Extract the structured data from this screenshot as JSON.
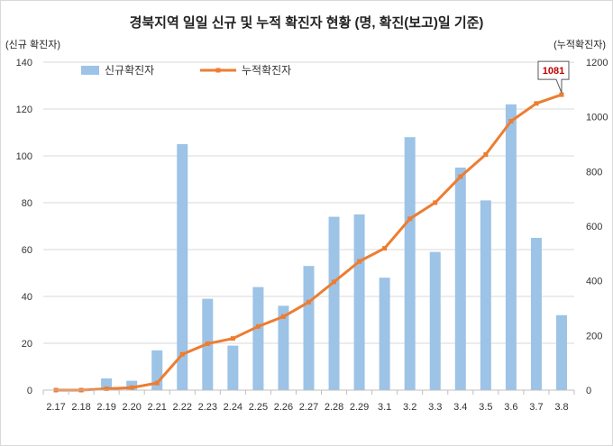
{
  "chart_data": {
    "type": "bar",
    "title": "경북지역 일일 신규 및 누적 확진자 현황 (명, 확진(보고)일 기준)",
    "ylabel": "(신규 확진자)",
    "ylabel_right": "(누적확진자)",
    "categories": [
      "2.17",
      "2.18",
      "2.19",
      "2.20",
      "2.21",
      "2.22",
      "2.23",
      "2.24",
      "2.25",
      "2.26",
      "2.27",
      "2.28",
      "2.29",
      "3.1",
      "3.2",
      "3.3",
      "3.4",
      "3.5",
      "3.6",
      "3.7",
      "3.8"
    ],
    "ylim": [
      0,
      140
    ],
    "y2lim": [
      0,
      1200
    ],
    "yticks": [
      0,
      20,
      40,
      60,
      80,
      100,
      120,
      140
    ],
    "y2ticks": [
      0,
      200,
      400,
      600,
      800,
      1000,
      1200
    ],
    "grid": true,
    "legend_position": "top-left",
    "series": [
      {
        "name": "신규확진자",
        "type": "bar",
        "axis": "left",
        "color": "#9dc3e6",
        "values": [
          0,
          0,
          5,
          4,
          17,
          105,
          39,
          19,
          44,
          36,
          53,
          74,
          75,
          48,
          108,
          59,
          95,
          81,
          122,
          65,
          32
        ]
      },
      {
        "name": "누적확진자",
        "type": "line",
        "axis": "right",
        "color": "#ed7d31",
        "values": [
          0,
          0,
          5,
          9,
          26,
          131,
          170,
          189,
          233,
          269,
          322,
          396,
          471,
          519,
          627,
          686,
          781,
          862,
          984,
          1049,
          1081
        ]
      }
    ],
    "annotations": [
      {
        "series": "누적확진자",
        "category": "3.8",
        "text": "1081",
        "color": "#c00000"
      }
    ]
  }
}
